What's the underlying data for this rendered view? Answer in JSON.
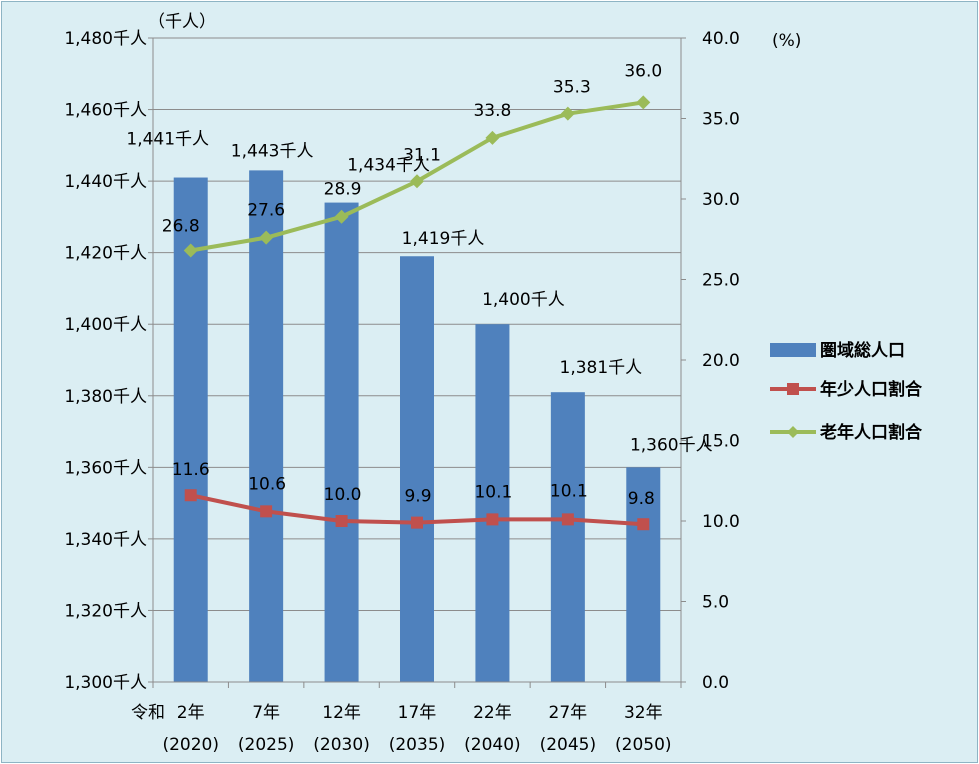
{
  "chart_data": {
    "type": "bar+line",
    "left_unit": "（千人）",
    "right_unit": "(%)",
    "era_prefix": "令和",
    "categories": [
      "2年",
      "7年",
      "12年",
      "17年",
      "22年",
      "27年",
      "32年"
    ],
    "category_years": [
      "(2020)",
      "(2025)",
      "(2030)",
      "(2035)",
      "(2040)",
      "(2045)",
      "(2050)"
    ],
    "left_axis": {
      "ylim": [
        1300,
        1480
      ],
      "ticks": [
        1300,
        1320,
        1340,
        1360,
        1380,
        1400,
        1420,
        1440,
        1460,
        1480
      ],
      "tick_labels": [
        "1,300千人",
        "1,320千人",
        "1,340千人",
        "1,360千人",
        "1,380千人",
        "1,400千人",
        "1,420千人",
        "1,440千人",
        "1,460千人",
        "1,480千人"
      ]
    },
    "right_axis": {
      "ylim": [
        0,
        40
      ],
      "ticks": [
        0,
        5,
        10,
        15,
        20,
        25,
        30,
        35,
        40
      ],
      "tick_labels": [
        "0.0",
        "5.0",
        "10.0",
        "15.0",
        "20.0",
        "25.0",
        "30.0",
        "35.0",
        "40.0"
      ]
    },
    "grid": true,
    "legend_position": "right",
    "bar_series": {
      "name": "圏域総人口",
      "color": "#4f81bd",
      "values": [
        1441,
        1443,
        1434,
        1419,
        1400,
        1381,
        1360
      ],
      "labels": [
        "1,441千人",
        "1,443千人",
        "1,434千人",
        "1,419千人",
        "1,400千人",
        "1,381千人",
        "1,360千人"
      ]
    },
    "line_series": [
      {
        "name": "年少人口割合",
        "color": "#c0504d",
        "marker": "square",
        "values": [
          11.6,
          10.6,
          10.0,
          9.9,
          10.1,
          10.1,
          9.8
        ],
        "labels": [
          "11.6",
          "10.6",
          "10.0",
          "9.9",
          "10.1",
          "10.1",
          "9.8"
        ]
      },
      {
        "name": "老年人口割合",
        "color": "#9bbb59",
        "marker": "diamond",
        "values": [
          26.8,
          27.6,
          28.9,
          31.1,
          33.8,
          35.3,
          36.0
        ],
        "labels": [
          "26.8",
          "27.6",
          "28.9",
          "31.1",
          "33.8",
          "35.3",
          "36.0"
        ]
      }
    ]
  }
}
